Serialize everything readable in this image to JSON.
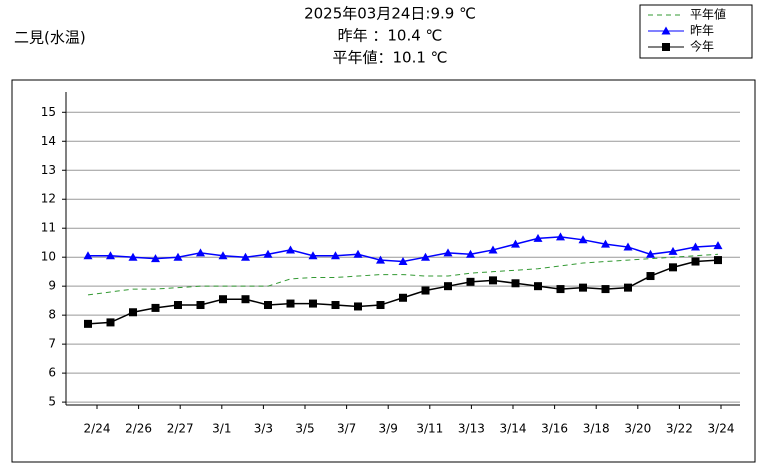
{
  "chart_data": {
    "type": "line",
    "station": "二見(水温)",
    "title_lines": [
      "2025年03月24日:9.9 ℃",
      "昨年 ：10.4 ℃",
      "平年値：10.1 ℃"
    ],
    "xtick_labels": [
      "2/24",
      "2/26",
      "2/27",
      "3/1",
      "3/3",
      "3/5",
      "3/7",
      "3/9",
      "3/11",
      "3/13",
      "3/14",
      "3/16",
      "3/18",
      "3/20",
      "3/22",
      "3/24"
    ],
    "ylim": [
      4.9,
      15.7
    ],
    "yticks": [
      5,
      6,
      7,
      8,
      9,
      10,
      11,
      12,
      13,
      14,
      15
    ],
    "grid": true,
    "series": [
      {
        "name": "平年値",
        "color": "#339933",
        "style": "dashed",
        "marker": "none",
        "values": [
          8.7,
          8.8,
          8.9,
          8.9,
          8.95,
          9.0,
          9.0,
          9.0,
          9.0,
          9.25,
          9.3,
          9.3,
          9.35,
          9.4,
          9.4,
          9.35,
          9.35,
          9.45,
          9.5,
          9.55,
          9.6,
          9.7,
          9.8,
          9.85,
          9.9,
          9.95,
          10.0,
          10.05,
          10.1
        ]
      },
      {
        "name": "昨年",
        "color": "#0000ff",
        "style": "solid",
        "marker": "triangle",
        "values": [
          10.05,
          10.05,
          10.0,
          9.95,
          10.0,
          10.15,
          10.05,
          10.0,
          10.1,
          10.25,
          10.05,
          10.05,
          10.1,
          9.9,
          9.85,
          10.0,
          10.15,
          10.1,
          10.25,
          10.45,
          10.65,
          10.7,
          10.6,
          10.45,
          10.35,
          10.1,
          10.2,
          10.35,
          10.4
        ]
      },
      {
        "name": "今年",
        "color": "#000000",
        "style": "solid",
        "marker": "square",
        "values": [
          7.7,
          7.75,
          8.1,
          8.25,
          8.35,
          8.35,
          8.55,
          8.55,
          8.35,
          8.4,
          8.4,
          8.35,
          8.3,
          8.35,
          8.6,
          8.85,
          9.0,
          9.15,
          9.2,
          9.1,
          9.0,
          8.9,
          8.95,
          8.9,
          8.95,
          9.35,
          9.65,
          9.85,
          9.9
        ]
      }
    ]
  }
}
